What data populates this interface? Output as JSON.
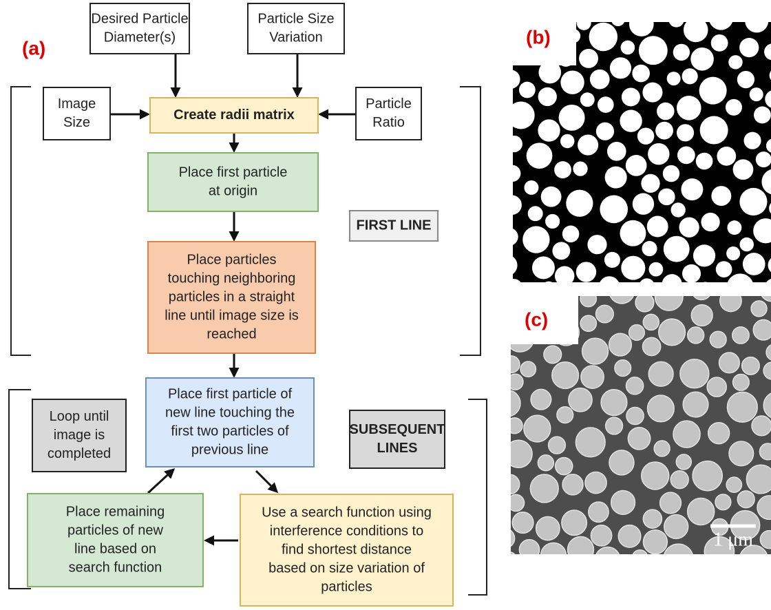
{
  "panel_labels": [
    "(a)",
    "(b)",
    "(c)"
  ],
  "scale_bar": "1 μm",
  "nodes": [
    {
      "lines": [
        "Desired Particle",
        "Diameter(s)"
      ]
    },
    {
      "lines": [
        "Particle Size",
        "Variation"
      ]
    },
    {
      "lines": [
        "Image",
        "Size"
      ]
    },
    {
      "lines": [
        "Create radii matrix"
      ]
    },
    {
      "lines": [
        "Particle",
        "Ratio"
      ]
    },
    {
      "lines": [
        "Place first particle",
        "at origin"
      ]
    },
    {
      "lines": [
        "FIRST LINE"
      ]
    },
    {
      "lines": [
        "Place particles",
        "touching  neighboring",
        "particles in a straight",
        "line until image size is",
        "reached"
      ]
    },
    {
      "lines": [
        "Place first particle of",
        "new line touching the",
        "first two particles of",
        "previous line"
      ]
    },
    {
      "lines": [
        "Loop until",
        "image is",
        "completed"
      ]
    },
    {
      "lines": [
        "SUBSEQUENT",
        "LINES"
      ]
    },
    {
      "lines": [
        "Place remaining",
        "particles of new",
        "line based on",
        "search function"
      ]
    },
    {
      "lines": [
        "Use a search function using",
        "interference conditions to",
        "find shortest distance",
        "based on size variation of",
        "particles"
      ]
    }
  ]
}
